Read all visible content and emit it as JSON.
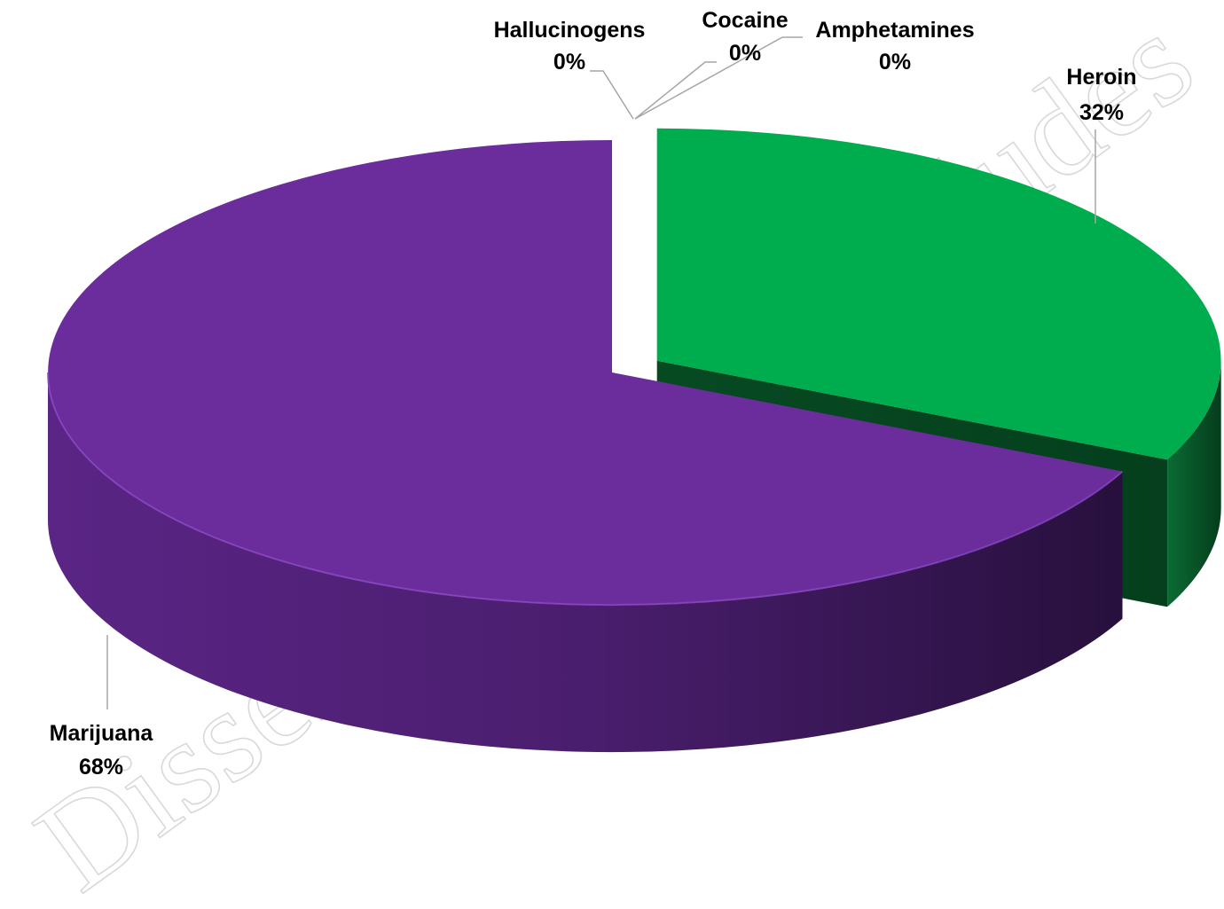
{
  "chart_data": {
    "type": "pie",
    "style": "3d-exploded",
    "categories": [
      "Heroin",
      "Marijuana",
      "Hallucinogens",
      "Cocaine",
      "Amphetamines"
    ],
    "values": [
      32,
      68,
      0,
      0,
      0
    ],
    "value_labels": [
      "32%",
      "68%",
      "0%",
      "0%",
      "0%"
    ],
    "colors": {
      "Heroin": "#00ad4e",
      "Marijuana": "#6c2d9c"
    },
    "title": "",
    "legend": "none",
    "data_labels": "outside with leader lines"
  },
  "watermark": {
    "text": "Dissemination ... Includes"
  }
}
